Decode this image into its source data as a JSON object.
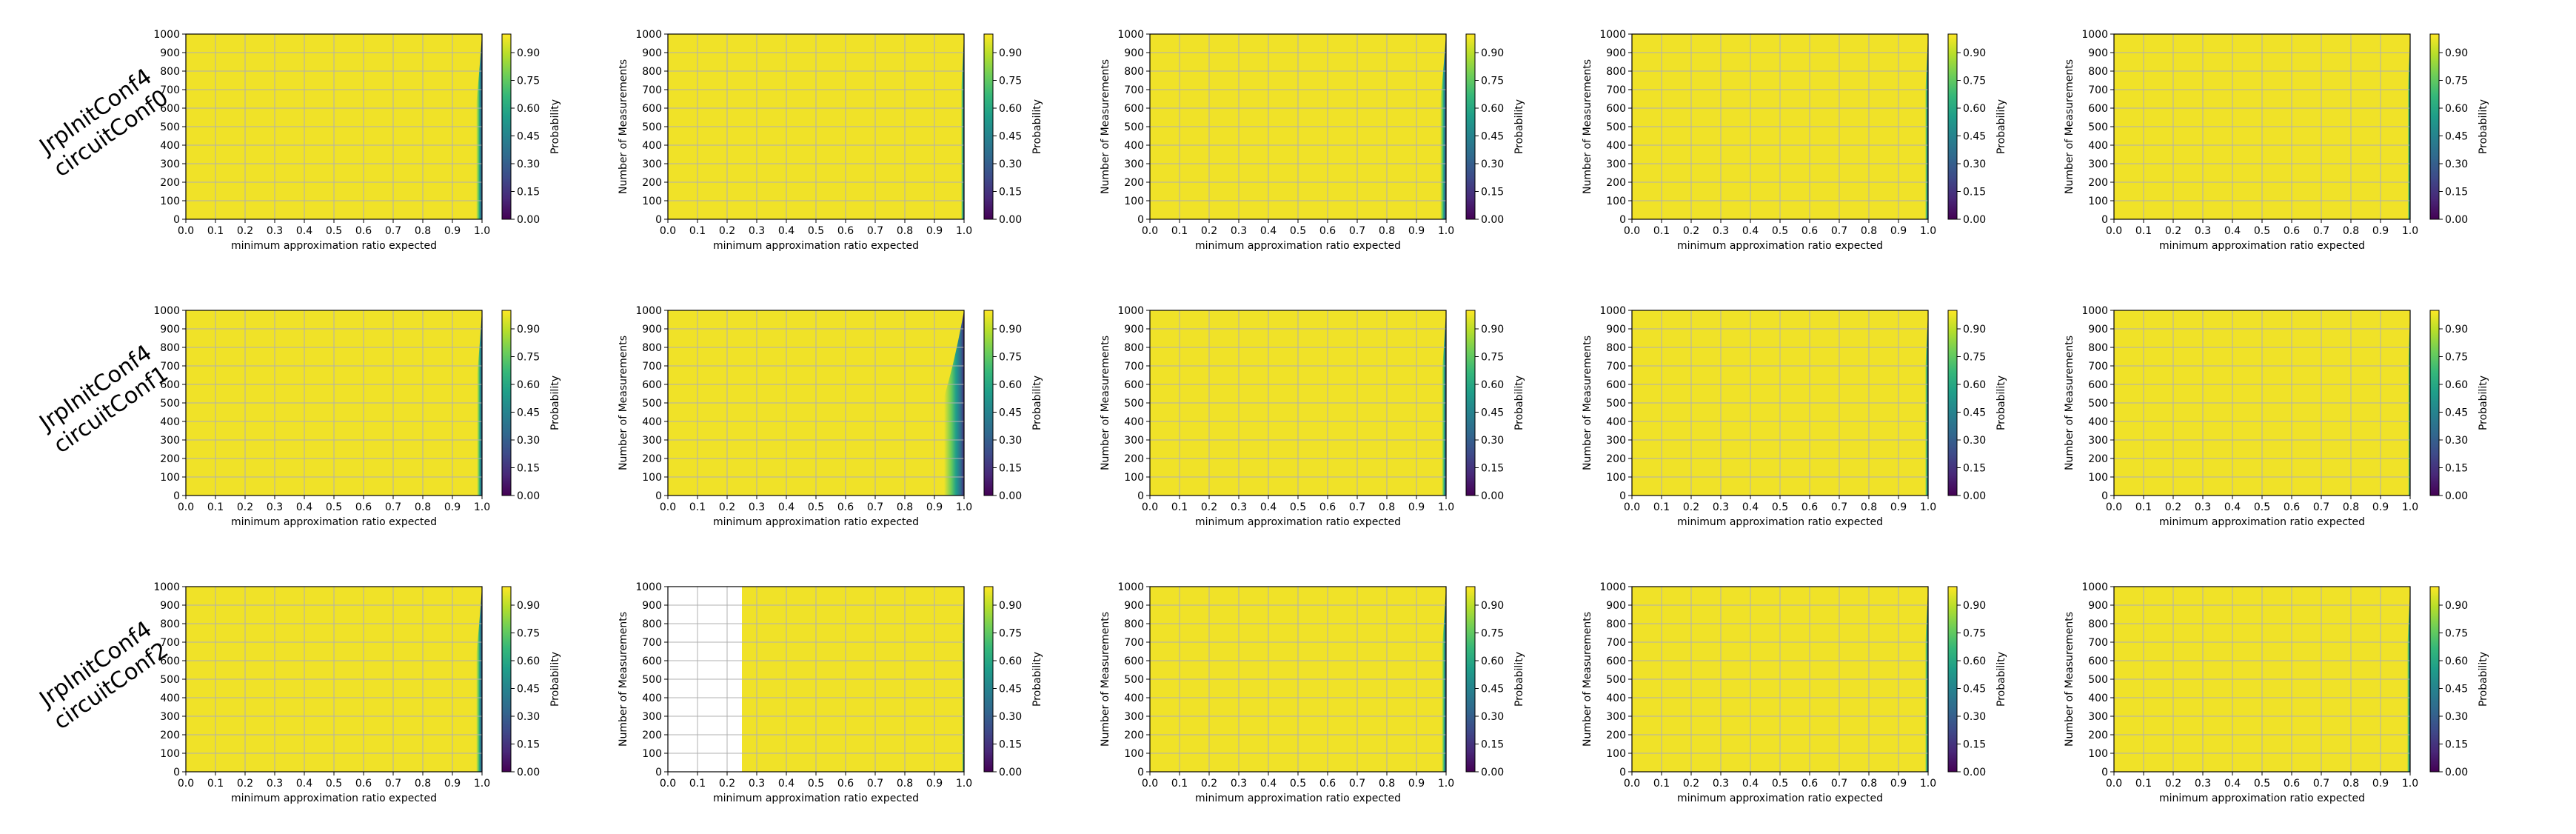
{
  "figure": {
    "row_labels": [
      [
        "JrpInitConf4",
        "circuitConf0"
      ],
      [
        "JrpInitConf4",
        "circuitConf1"
      ],
      [
        "JrpInitConf4",
        "circuitConf2"
      ]
    ]
  },
  "colors": {
    "viridis": [
      "#440154",
      "#482878",
      "#3e4a89",
      "#31688e",
      "#26828e",
      "#1f9e89",
      "#35b779",
      "#6ece58",
      "#b5de2b",
      "#fde725"
    ],
    "plot_fill": "#f0e228",
    "grid": "#b0b0b0"
  },
  "chart_data": [
    {
      "type": "heatmap",
      "row": 0,
      "col": 0,
      "xlabel": "minimum approximation ratio expected",
      "ylabel": "",
      "xlim": [
        0,
        1
      ],
      "ylim": [
        0,
        1000
      ],
      "x_ticks": [
        "0.0",
        "0.1",
        "0.2",
        "0.3",
        "0.4",
        "0.5",
        "0.6",
        "0.7",
        "0.8",
        "0.9",
        "1.0"
      ],
      "y_ticks": [
        "0",
        "100",
        "200",
        "300",
        "400",
        "500",
        "600",
        "700",
        "800",
        "900",
        "1000"
      ],
      "colorbar_label": "Probability",
      "colorbar_ticks": [
        "0.00",
        "0.15",
        "0.30",
        "0.45",
        "0.60",
        "0.75",
        "0.90"
      ],
      "grid": true,
      "blank_below_x": null,
      "drop_start": 0.86,
      "curve_k": 3.2
    },
    {
      "type": "heatmap",
      "row": 0,
      "col": 1,
      "xlabel": "minimum approximation ratio expected",
      "ylabel": "Number of Measurements",
      "xlim": [
        0,
        1
      ],
      "ylim": [
        0,
        1000
      ],
      "x_ticks": [
        "0.0",
        "0.1",
        "0.2",
        "0.3",
        "0.4",
        "0.5",
        "0.6",
        "0.7",
        "0.8",
        "0.9",
        "1.0"
      ],
      "y_ticks": [
        "0",
        "100",
        "200",
        "300",
        "400",
        "500",
        "600",
        "700",
        "800",
        "900",
        "1000"
      ],
      "colorbar_label": "Probability",
      "colorbar_ticks": [
        "0.00",
        "0.15",
        "0.30",
        "0.45",
        "0.60",
        "0.75",
        "0.90"
      ],
      "grid": true,
      "blank_below_x": null,
      "drop_start": 0.9,
      "curve_k": 3.6
    },
    {
      "type": "heatmap",
      "row": 0,
      "col": 2,
      "xlabel": "minimum approximation ratio expected",
      "ylabel": "Number of Measurements",
      "xlim": [
        0,
        1
      ],
      "ylim": [
        0,
        1000
      ],
      "x_ticks": [
        "0.0",
        "0.1",
        "0.2",
        "0.3",
        "0.4",
        "0.5",
        "0.6",
        "0.7",
        "0.8",
        "0.9",
        "1.0"
      ],
      "y_ticks": [
        "0",
        "100",
        "200",
        "300",
        "400",
        "500",
        "600",
        "700",
        "800",
        "900",
        "1000"
      ],
      "colorbar_label": "Probability",
      "colorbar_ticks": [
        "0.00",
        "0.15",
        "0.30",
        "0.45",
        "0.60",
        "0.75",
        "0.90"
      ],
      "grid": true,
      "blank_below_x": null,
      "drop_start": 0.86,
      "curve_k": 3.0
    },
    {
      "type": "heatmap",
      "row": 0,
      "col": 3,
      "xlabel": "minimum approximation ratio expected",
      "ylabel": "Number of Measurements",
      "xlim": [
        0,
        1
      ],
      "ylim": [
        0,
        1000
      ],
      "x_ticks": [
        "0.0",
        "0.1",
        "0.2",
        "0.3",
        "0.4",
        "0.5",
        "0.6",
        "0.7",
        "0.8",
        "0.9",
        "1.0"
      ],
      "y_ticks": [
        "0",
        "100",
        "200",
        "300",
        "400",
        "500",
        "600",
        "700",
        "800",
        "900",
        "1000"
      ],
      "colorbar_label": "Probability",
      "colorbar_ticks": [
        "0.00",
        "0.15",
        "0.30",
        "0.45",
        "0.60",
        "0.75",
        "0.90"
      ],
      "grid": true,
      "blank_below_x": null,
      "drop_start": 0.9,
      "curve_k": 3.8
    },
    {
      "type": "heatmap",
      "row": 0,
      "col": 4,
      "xlabel": "minimum approximation ratio expected",
      "ylabel": "Number of Measurements",
      "xlim": [
        0,
        1
      ],
      "ylim": [
        0,
        1000
      ],
      "x_ticks": [
        "0.0",
        "0.1",
        "0.2",
        "0.3",
        "0.4",
        "0.5",
        "0.6",
        "0.7",
        "0.8",
        "0.9",
        "1.0"
      ],
      "y_ticks": [
        "0",
        "100",
        "200",
        "300",
        "400",
        "500",
        "600",
        "700",
        "800",
        "900",
        "1000"
      ],
      "colorbar_label": "Probability",
      "colorbar_ticks": [
        "0.00",
        "0.15",
        "0.30",
        "0.45",
        "0.60",
        "0.75",
        "0.90"
      ],
      "grid": true,
      "blank_below_x": null,
      "drop_start": 0.91,
      "curve_k": 4.2
    },
    {
      "type": "heatmap",
      "row": 1,
      "col": 0,
      "xlabel": "minimum approximation ratio expected",
      "ylabel": "",
      "xlim": [
        0,
        1
      ],
      "ylim": [
        0,
        1000
      ],
      "x_ticks": [
        "0.0",
        "0.1",
        "0.2",
        "0.3",
        "0.4",
        "0.5",
        "0.6",
        "0.7",
        "0.8",
        "0.9",
        "1.0"
      ],
      "y_ticks": [
        "0",
        "100",
        "200",
        "300",
        "400",
        "500",
        "600",
        "700",
        "800",
        "900",
        "1000"
      ],
      "colorbar_label": "Probability",
      "colorbar_ticks": [
        "0.00",
        "0.15",
        "0.30",
        "0.45",
        "0.60",
        "0.75",
        "0.90"
      ],
      "grid": true,
      "blank_below_x": null,
      "drop_start": 0.87,
      "curve_k": 3.2
    },
    {
      "type": "heatmap",
      "row": 1,
      "col": 1,
      "xlabel": "minimum approximation ratio expected",
      "ylabel": "Number of Measurements",
      "xlim": [
        0,
        1
      ],
      "ylim": [
        0,
        1000
      ],
      "x_ticks": [
        "0.0",
        "0.1",
        "0.2",
        "0.3",
        "0.4",
        "0.5",
        "0.6",
        "0.7",
        "0.8",
        "0.9",
        "1.0"
      ],
      "y_ticks": [
        "0",
        "100",
        "200",
        "300",
        "400",
        "500",
        "600",
        "700",
        "800",
        "900",
        "1000"
      ],
      "colorbar_label": "Probability",
      "colorbar_ticks": [
        "0.00",
        "0.15",
        "0.30",
        "0.45",
        "0.60",
        "0.75",
        "0.90"
      ],
      "grid": true,
      "blank_below_x": null,
      "drop_start": 0.74,
      "curve_k": 2.0
    },
    {
      "type": "heatmap",
      "row": 1,
      "col": 2,
      "xlabel": "minimum approximation ratio expected",
      "ylabel": "Number of Measurements",
      "xlim": [
        0,
        1
      ],
      "ylim": [
        0,
        1000
      ],
      "x_ticks": [
        "0.0",
        "0.1",
        "0.2",
        "0.3",
        "0.4",
        "0.5",
        "0.6",
        "0.7",
        "0.8",
        "0.9",
        "1.0"
      ],
      "y_ticks": [
        "0",
        "100",
        "200",
        "300",
        "400",
        "500",
        "600",
        "700",
        "800",
        "900",
        "1000"
      ],
      "colorbar_label": "Probability",
      "colorbar_ticks": [
        "0.00",
        "0.15",
        "0.30",
        "0.45",
        "0.60",
        "0.75",
        "0.90"
      ],
      "grid": true,
      "blank_below_x": null,
      "drop_start": 0.88,
      "curve_k": 3.4
    },
    {
      "type": "heatmap",
      "row": 1,
      "col": 3,
      "xlabel": "minimum approximation ratio expected",
      "ylabel": "Number of Measurements",
      "xlim": [
        0,
        1
      ],
      "ylim": [
        0,
        1000
      ],
      "x_ticks": [
        "0.0",
        "0.1",
        "0.2",
        "0.3",
        "0.4",
        "0.5",
        "0.6",
        "0.7",
        "0.8",
        "0.9",
        "1.0"
      ],
      "y_ticks": [
        "0",
        "100",
        "200",
        "300",
        "400",
        "500",
        "600",
        "700",
        "800",
        "900",
        "1000"
      ],
      "colorbar_label": "Probability",
      "colorbar_ticks": [
        "0.00",
        "0.15",
        "0.30",
        "0.45",
        "0.60",
        "0.75",
        "0.90"
      ],
      "grid": true,
      "blank_below_x": null,
      "drop_start": 0.9,
      "curve_k": 3.8
    },
    {
      "type": "heatmap",
      "row": 1,
      "col": 4,
      "xlabel": "minimum approximation ratio expected",
      "ylabel": "Number of Measurements",
      "xlim": [
        0,
        1
      ],
      "ylim": [
        0,
        1000
      ],
      "x_ticks": [
        "0.0",
        "0.1",
        "0.2",
        "0.3",
        "0.4",
        "0.5",
        "0.6",
        "0.7",
        "0.8",
        "0.9",
        "1.0"
      ],
      "y_ticks": [
        "0",
        "100",
        "200",
        "300",
        "400",
        "500",
        "600",
        "700",
        "800",
        "900",
        "1000"
      ],
      "colorbar_label": "Probability",
      "colorbar_ticks": [
        "0.00",
        "0.15",
        "0.30",
        "0.45",
        "0.60",
        "0.75",
        "0.90"
      ],
      "grid": true,
      "blank_below_x": null,
      "drop_start": 0.92,
      "curve_k": 4.4
    },
    {
      "type": "heatmap",
      "row": 2,
      "col": 0,
      "xlabel": "minimum approximation ratio expected",
      "ylabel": "",
      "xlim": [
        0,
        1
      ],
      "ylim": [
        0,
        1000
      ],
      "x_ticks": [
        "0.0",
        "0.1",
        "0.2",
        "0.3",
        "0.4",
        "0.5",
        "0.6",
        "0.7",
        "0.8",
        "0.9",
        "1.0"
      ],
      "y_ticks": [
        "0",
        "100",
        "200",
        "300",
        "400",
        "500",
        "600",
        "700",
        "800",
        "900",
        "1000"
      ],
      "colorbar_label": "Probability",
      "colorbar_ticks": [
        "0.00",
        "0.15",
        "0.30",
        "0.45",
        "0.60",
        "0.75",
        "0.90"
      ],
      "grid": true,
      "blank_below_x": null,
      "drop_start": 0.86,
      "curve_k": 3.1
    },
    {
      "type": "heatmap",
      "row": 2,
      "col": 1,
      "xlabel": "minimum approximation ratio expected",
      "ylabel": "Number of Measurements",
      "xlim": [
        0,
        1
      ],
      "ylim": [
        0,
        1000
      ],
      "x_ticks": [
        "0.0",
        "0.1",
        "0.2",
        "0.3",
        "0.4",
        "0.5",
        "0.6",
        "0.7",
        "0.8",
        "0.9",
        "1.0"
      ],
      "y_ticks": [
        "0",
        "100",
        "200",
        "300",
        "400",
        "500",
        "600",
        "700",
        "800",
        "900",
        "1000"
      ],
      "colorbar_label": "Probability",
      "colorbar_ticks": [
        "0.00",
        "0.15",
        "0.30",
        "0.45",
        "0.60",
        "0.75",
        "0.90"
      ],
      "grid": true,
      "blank_below_x": 0.25,
      "drop_start": 0.92,
      "curve_k": 4.5
    },
    {
      "type": "heatmap",
      "row": 2,
      "col": 2,
      "xlabel": "minimum approximation ratio expected",
      "ylabel": "Number of Measurements",
      "xlim": [
        0,
        1
      ],
      "ylim": [
        0,
        1000
      ],
      "x_ticks": [
        "0.0",
        "0.1",
        "0.2",
        "0.3",
        "0.4",
        "0.5",
        "0.6",
        "0.7",
        "0.8",
        "0.9",
        "1.0"
      ],
      "y_ticks": [
        "0",
        "100",
        "200",
        "300",
        "400",
        "500",
        "600",
        "700",
        "800",
        "900",
        "1000"
      ],
      "colorbar_label": "Probability",
      "colorbar_ticks": [
        "0.00",
        "0.15",
        "0.30",
        "0.45",
        "0.60",
        "0.75",
        "0.90"
      ],
      "grid": true,
      "blank_below_x": null,
      "drop_start": 0.88,
      "curve_k": 3.4
    },
    {
      "type": "heatmap",
      "row": 2,
      "col": 3,
      "xlabel": "minimum approximation ratio expected",
      "ylabel": "Number of Measurements",
      "xlim": [
        0,
        1
      ],
      "ylim": [
        0,
        1000
      ],
      "x_ticks": [
        "0.0",
        "0.1",
        "0.2",
        "0.3",
        "0.4",
        "0.5",
        "0.6",
        "0.7",
        "0.8",
        "0.9",
        "1.0"
      ],
      "y_ticks": [
        "0",
        "100",
        "200",
        "300",
        "400",
        "500",
        "600",
        "700",
        "800",
        "900",
        "1000"
      ],
      "colorbar_label": "Probability",
      "colorbar_ticks": [
        "0.00",
        "0.15",
        "0.30",
        "0.45",
        "0.60",
        "0.75",
        "0.90"
      ],
      "grid": true,
      "blank_below_x": null,
      "drop_start": 0.9,
      "curve_k": 3.8
    },
    {
      "type": "heatmap",
      "row": 2,
      "col": 4,
      "xlabel": "minimum approximation ratio expected",
      "ylabel": "Number of Measurements",
      "xlim": [
        0,
        1
      ],
      "ylim": [
        0,
        1000
      ],
      "x_ticks": [
        "0.0",
        "0.1",
        "0.2",
        "0.3",
        "0.4",
        "0.5",
        "0.6",
        "0.7",
        "0.8",
        "0.9",
        "1.0"
      ],
      "y_ticks": [
        "0",
        "100",
        "200",
        "300",
        "400",
        "500",
        "600",
        "700",
        "800",
        "900",
        "1000"
      ],
      "colorbar_label": "Probability",
      "colorbar_ticks": [
        "0.00",
        "0.15",
        "0.30",
        "0.45",
        "0.60",
        "0.75",
        "0.90"
      ],
      "grid": true,
      "blank_below_x": null,
      "drop_start": 0.9,
      "curve_k": 4.0
    }
  ]
}
